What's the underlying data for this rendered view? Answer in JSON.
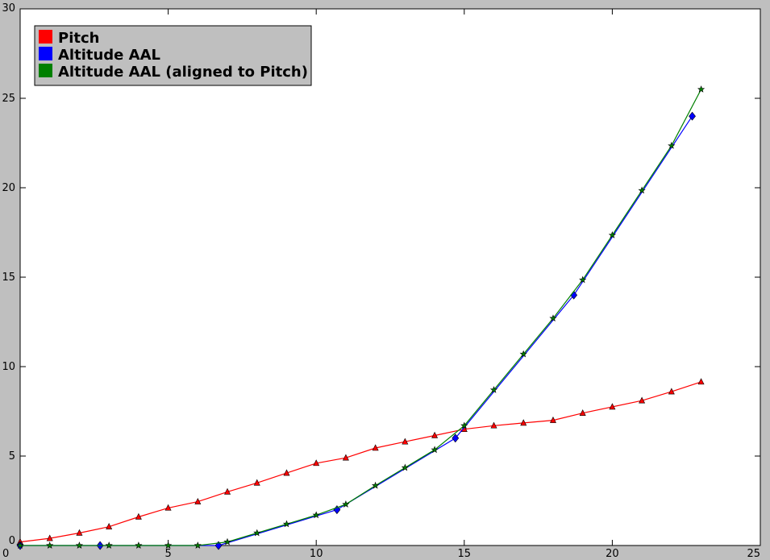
{
  "chart_data": {
    "type": "line",
    "xlim": [
      0,
      25
    ],
    "ylim": [
      0,
      30
    ],
    "x_ticks": [
      "0",
      "5",
      "10",
      "15",
      "20",
      "25"
    ],
    "y_ticks": [
      "0",
      "5",
      "10",
      "15",
      "20",
      "25",
      "30"
    ],
    "grid": false,
    "legend_position": "top-left",
    "series": [
      {
        "name": "Pitch",
        "color": "#ff0000",
        "marker": "triangle",
        "points": [
          [
            0,
            0.2
          ],
          [
            1,
            0.4
          ],
          [
            2,
            0.7
          ],
          [
            3,
            1.05
          ],
          [
            4,
            1.6
          ],
          [
            5,
            2.1
          ],
          [
            6,
            2.45
          ],
          [
            7,
            3.0
          ],
          [
            8,
            3.5
          ],
          [
            9,
            4.05
          ],
          [
            10,
            4.6
          ],
          [
            11,
            4.9
          ],
          [
            12,
            5.45
          ],
          [
            13,
            5.8
          ],
          [
            14,
            6.15
          ],
          [
            15,
            6.5
          ],
          [
            16,
            6.7
          ],
          [
            17,
            6.85
          ],
          [
            18,
            7.0
          ],
          [
            19,
            7.4
          ],
          [
            20,
            7.75
          ],
          [
            21,
            8.1
          ],
          [
            22,
            8.6
          ],
          [
            23,
            9.15
          ]
        ]
      },
      {
        "name": "Altitude AAL",
        "color": "#0000ff",
        "marker": "diamond",
        "points": [
          [
            0,
            0
          ],
          [
            2.7,
            0
          ],
          [
            6.7,
            0
          ],
          [
            10.7,
            2.0
          ],
          [
            14.7,
            6.0
          ],
          [
            18.7,
            14.0
          ],
          [
            22.7,
            24.0
          ]
        ]
      },
      {
        "name": "Altitude AAL (aligned to Pitch)",
        "color": "#008000",
        "marker": "star",
        "points": [
          [
            0,
            0
          ],
          [
            1,
            0
          ],
          [
            2,
            0
          ],
          [
            3,
            0
          ],
          [
            4,
            0
          ],
          [
            5,
            0
          ],
          [
            6,
            0
          ],
          [
            7,
            0.2
          ],
          [
            8,
            0.7
          ],
          [
            9,
            1.2
          ],
          [
            10,
            1.7
          ],
          [
            11,
            2.3
          ],
          [
            12,
            3.35
          ],
          [
            13,
            4.35
          ],
          [
            14,
            5.35
          ],
          [
            15,
            6.7
          ],
          [
            16,
            8.7
          ],
          [
            17,
            10.7
          ],
          [
            18,
            12.7
          ],
          [
            19,
            14.85
          ],
          [
            20,
            17.35
          ],
          [
            21,
            19.85
          ],
          [
            22,
            22.35
          ],
          [
            23,
            25.5
          ]
        ]
      }
    ]
  }
}
